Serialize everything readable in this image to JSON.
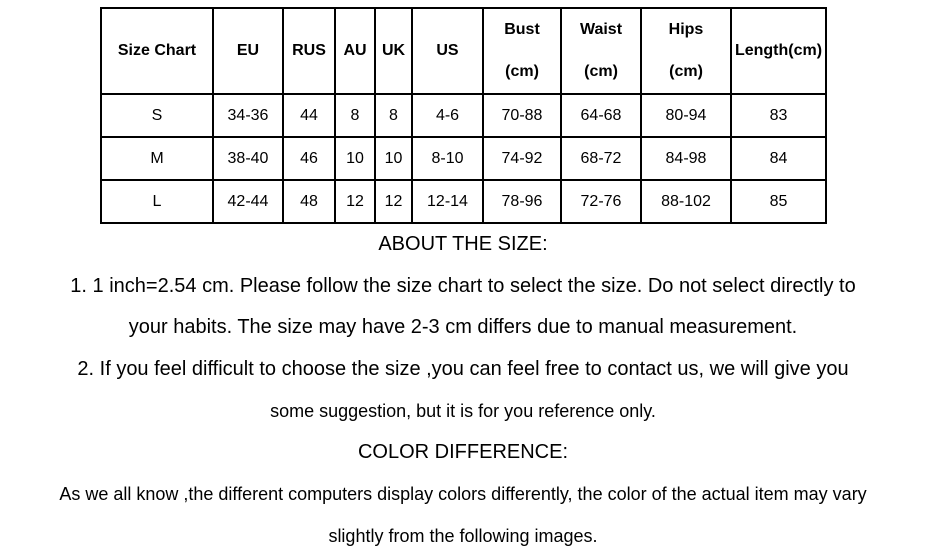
{
  "table": {
    "headers": [
      [
        "Size Chart"
      ],
      [
        "EU"
      ],
      [
        "RUS"
      ],
      [
        "AU"
      ],
      [
        "UK"
      ],
      [
        "US"
      ],
      [
        "Bust",
        "(cm)"
      ],
      [
        "Waist",
        "(cm)"
      ],
      [
        "Hips",
        "(cm)"
      ],
      [
        "Length(cm)"
      ]
    ],
    "rows": [
      [
        "S",
        "34-36",
        "44",
        "8",
        "8",
        "4-6",
        "70-88",
        "64-68",
        "80-94",
        "83"
      ],
      [
        "M",
        "38-40",
        "46",
        "10",
        "10",
        "8-10",
        "74-92",
        "68-72",
        "84-98",
        "84"
      ],
      [
        "L",
        "42-44",
        "48",
        "12",
        "12",
        "12-14",
        "78-96",
        "72-76",
        "88-102",
        "85"
      ]
    ]
  },
  "notes": {
    "size_heading": "ABOUT THE SIZE:",
    "size_1a": "1. 1 inch=2.54 cm. Please follow the size chart to select the size. Do not select directly to",
    "size_1b": "your habits. The size may have 2-3 cm differs due to manual measurement.",
    "size_2a": "2. If you feel difficult to choose the size ,you can feel free to contact us, we will give you",
    "size_2b": "some suggestion, but it is for you reference only.",
    "color_heading": "COLOR DIFFERENCE:",
    "color_a": "As we all know ,the different computers display colors differently, the color of the actual item may vary",
    "color_b": "slightly from the following images."
  }
}
